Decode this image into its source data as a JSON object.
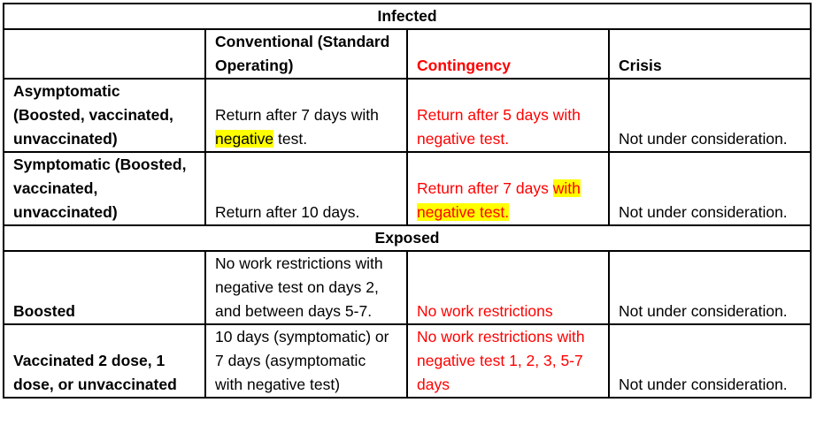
{
  "table": {
    "sections": [
      {
        "title": "Infected",
        "columns": [
          "Conventional (Standard Operating)",
          "Contingency",
          "Crisis"
        ],
        "rows": [
          {
            "label": "Asymptomatic (Boosted, vaccinated, unvaccinated)",
            "cells": [
              [
                "Return after 7 days with ",
                {
                  "text": "negative",
                  "highlight": true
                },
                " test."
              ],
              [
                "Return after 5 days with negative test."
              ],
              [
                "Not under consideration."
              ]
            ]
          },
          {
            "label": "Symptomatic (Boosted, vaccinated, unvaccinated)",
            "cells": [
              [
                "Return after 10 days."
              ],
              [
                "Return after 7 days ",
                {
                  "text": "with negative test.",
                  "highlight": true
                }
              ],
              [
                "Not under consideration."
              ]
            ]
          }
        ]
      },
      {
        "title": "Exposed",
        "rows": [
          {
            "label": "Boosted",
            "cells": [
              [
                "No work restrictions with negative test on days 2, and between days 5-7."
              ],
              [
                "No work restrictions"
              ],
              [
                "Not under consideration."
              ]
            ]
          },
          {
            "label": "Vaccinated 2 dose, 1 dose, or unvaccinated",
            "cells": [
              [
                "10 days (symptomatic) or 7 days (asymptomatic with negative test)"
              ],
              [
                "No work restrictions with negative test 1, 2, 3, 5-7 days"
              ],
              [
                "Not under consideration."
              ]
            ]
          }
        ]
      }
    ]
  }
}
